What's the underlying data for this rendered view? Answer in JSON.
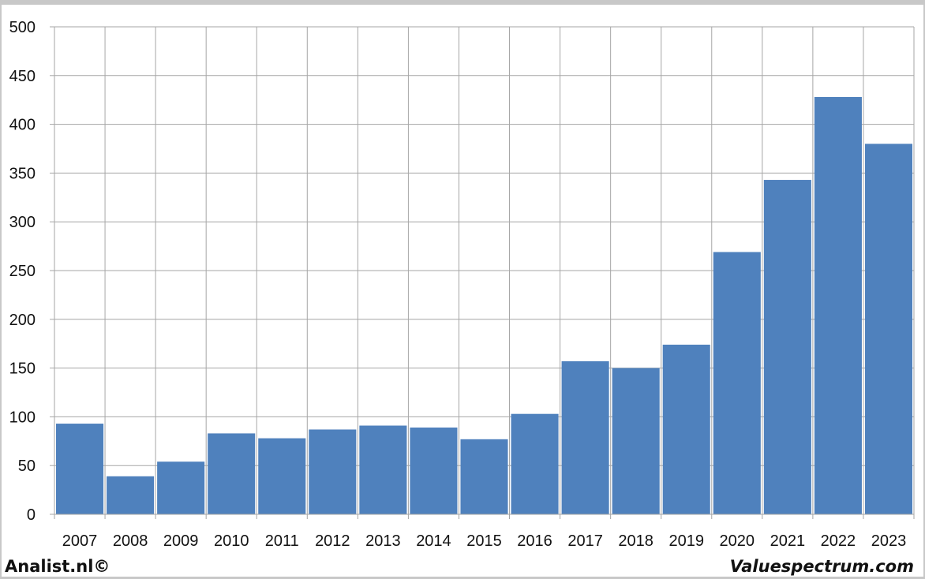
{
  "footer": {
    "left": "Analist.nl©",
    "right": "Valuespectrum.com"
  },
  "colors": {
    "bar": "#4f81bd",
    "grid": "#a6a6a6",
    "text": "#111111"
  },
  "chart_data": {
    "type": "bar",
    "title": "",
    "xlabel": "",
    "ylabel": "",
    "categories": [
      "2007",
      "2008",
      "2009",
      "2010",
      "2011",
      "2012",
      "2013",
      "2014",
      "2015",
      "2016",
      "2017",
      "2018",
      "2019",
      "2020",
      "2021",
      "2022",
      "2023"
    ],
    "values": [
      93,
      39,
      54,
      83,
      78,
      87,
      91,
      89,
      77,
      103,
      157,
      150,
      174,
      269,
      343,
      428,
      380
    ],
    "ylim": [
      0,
      500
    ],
    "yticks": [
      0,
      50,
      100,
      150,
      200,
      250,
      300,
      350,
      400,
      450,
      500
    ],
    "grid": true,
    "legend": "none"
  }
}
